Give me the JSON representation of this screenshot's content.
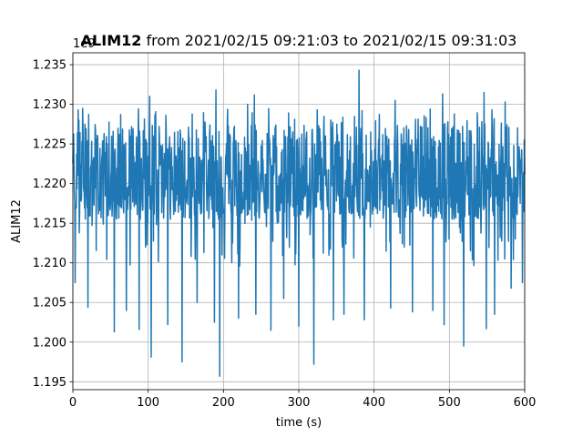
{
  "chart_data": {
    "type": "line",
    "title_bold": "ALIM12",
    "title_rest": " from 2021/02/15 09:21:03 to 2021/02/15 09:31:03",
    "xlabel": "time (s)",
    "ylabel": "ALIM12",
    "offset_text": "1e9",
    "xlim": [
      0,
      600
    ],
    "ylim": [
      1.194,
      1.2365
    ],
    "x_ticks": [
      0,
      100,
      200,
      300,
      400,
      500,
      600
    ],
    "y_ticks": [
      1.195,
      1.2,
      1.205,
      1.21,
      1.215,
      1.22,
      1.225,
      1.23,
      1.235
    ],
    "grid": true,
    "line_color": "#1f77b4",
    "series": [
      {
        "x_start": 0,
        "x_end": 600,
        "baseline": 1.2204,
        "typical_range": [
          1.2155,
          1.2275
        ],
        "peaks": [
          {
            "x": 7,
            "y": 1.2293
          },
          {
            "x": 13,
            "y": 1.2295
          },
          {
            "x": 102,
            "y": 1.231
          },
          {
            "x": 190,
            "y": 1.2318
          },
          {
            "x": 232,
            "y": 1.23
          },
          {
            "x": 241,
            "y": 1.2312
          },
          {
            "x": 380,
            "y": 1.2343
          },
          {
            "x": 428,
            "y": 1.2305
          },
          {
            "x": 491,
            "y": 1.2313
          },
          {
            "x": 546,
            "y": 1.2315
          },
          {
            "x": 574,
            "y": 1.2303
          }
        ],
        "troughs": [
          {
            "x": 3,
            "y": 1.2075
          },
          {
            "x": 20,
            "y": 1.2044
          },
          {
            "x": 55,
            "y": 1.2013
          },
          {
            "x": 71,
            "y": 1.204
          },
          {
            "x": 88,
            "y": 1.2016
          },
          {
            "x": 104,
            "y": 1.1981
          },
          {
            "x": 126,
            "y": 1.2022
          },
          {
            "x": 145,
            "y": 1.1975
          },
          {
            "x": 165,
            "y": 1.205
          },
          {
            "x": 188,
            "y": 1.2025
          },
          {
            "x": 195,
            "y": 1.1957
          },
          {
            "x": 220,
            "y": 1.203
          },
          {
            "x": 243,
            "y": 1.2035
          },
          {
            "x": 263,
            "y": 1.2015
          },
          {
            "x": 280,
            "y": 1.2055
          },
          {
            "x": 300,
            "y": 1.202
          },
          {
            "x": 320,
            "y": 1.1972
          },
          {
            "x": 346,
            "y": 1.2028
          },
          {
            "x": 360,
            "y": 1.2035
          },
          {
            "x": 387,
            "y": 1.2028
          },
          {
            "x": 422,
            "y": 1.2043
          },
          {
            "x": 451,
            "y": 1.2038
          },
          {
            "x": 478,
            "y": 1.204
          },
          {
            "x": 493,
            "y": 1.2022
          },
          {
            "x": 519,
            "y": 1.1995
          },
          {
            "x": 549,
            "y": 1.2017
          },
          {
            "x": 560,
            "y": 1.2035
          },
          {
            "x": 582,
            "y": 1.2068
          },
          {
            "x": 597,
            "y": 1.2075
          }
        ]
      }
    ]
  }
}
